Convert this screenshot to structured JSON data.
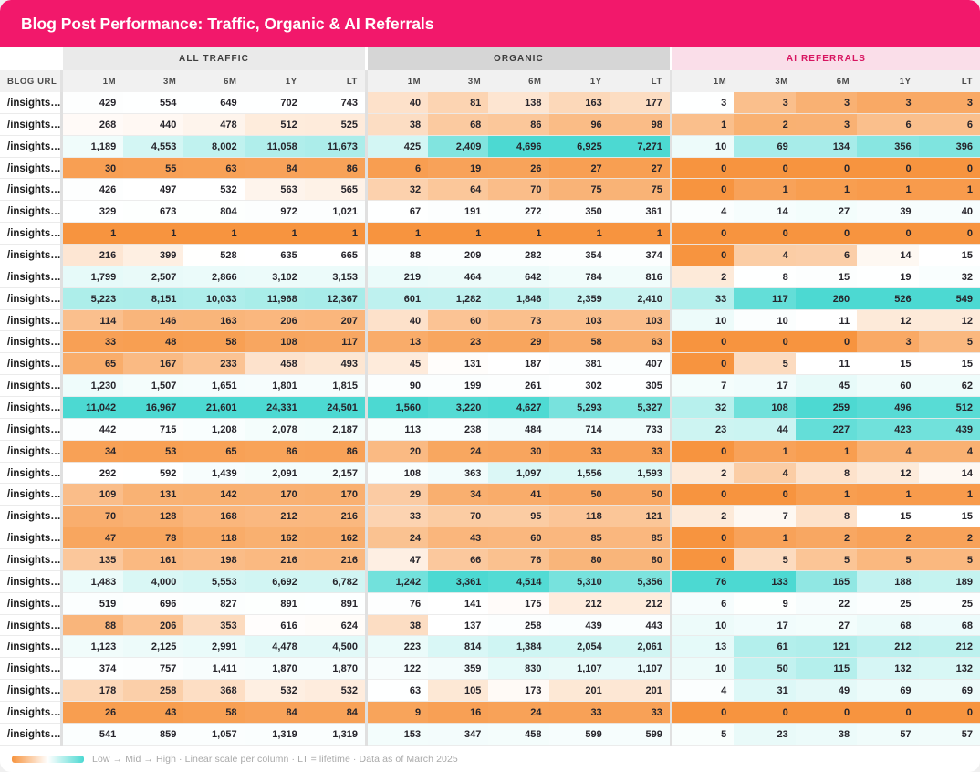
{
  "header": {
    "title": "Blog Post Performance: Traffic, Organic & AI Referrals"
  },
  "legend": {
    "text": "Low → Mid → High · Linear scale per column · LT = lifetime · Data as of March 2025"
  },
  "colors": {
    "header_pink": "#F2186B",
    "ai_group_bg": "#FADEE9",
    "ai_group_text": "#D81561",
    "group_bg_all_traffic": "#EAEAEA",
    "group_bg_organic": "#D6D6D6",
    "heat_low_orange": "#F7943F",
    "heat_mid_white": "#FFFFFF",
    "heat_high_teal": "#4CD9D2"
  },
  "chart_data": {
    "type": "heatmap",
    "title": "Blog Post Performance: Traffic, Organic & AI Referrals",
    "row_header_label": "BLOG URL",
    "row_label": "/insights…",
    "column_groups": [
      {
        "label": "ALL TRAFFIC"
      },
      {
        "label": "ORGANIC"
      },
      {
        "label": "AI REFERRALS"
      }
    ],
    "periods": [
      "1M",
      "3M",
      "6M",
      "1Y",
      "LT"
    ],
    "scale_note": "Low to Mid to High, linear scale per column, white at column median",
    "rows": [
      {
        "url": "/insights…",
        "all_traffic": [
          429,
          554,
          649,
          702,
          743
        ],
        "organic": [
          40,
          81,
          138,
          163,
          177
        ],
        "ai_referrals": [
          3,
          3,
          3,
          3,
          3
        ]
      },
      {
        "url": "/insights…",
        "all_traffic": [
          268,
          440,
          478,
          512,
          525
        ],
        "organic": [
          38,
          68,
          86,
          96,
          98
        ],
        "ai_referrals": [
          1,
          2,
          3,
          6,
          6
        ]
      },
      {
        "url": "/insights…",
        "all_traffic": [
          1189,
          4553,
          8002,
          11058,
          11673
        ],
        "organic": [
          425,
          2409,
          4696,
          6925,
          7271
        ],
        "ai_referrals": [
          10,
          69,
          134,
          356,
          396
        ]
      },
      {
        "url": "/insights…",
        "all_traffic": [
          30,
          55,
          63,
          84,
          86
        ],
        "organic": [
          6,
          19,
          26,
          27,
          27
        ],
        "ai_referrals": [
          0,
          0,
          0,
          0,
          0
        ]
      },
      {
        "url": "/insights…",
        "all_traffic": [
          426,
          497,
          532,
          563,
          565
        ],
        "organic": [
          32,
          64,
          70,
          75,
          75
        ],
        "ai_referrals": [
          0,
          1,
          1,
          1,
          1
        ]
      },
      {
        "url": "/insights…",
        "all_traffic": [
          329,
          673,
          804,
          972,
          1021
        ],
        "organic": [
          67,
          191,
          272,
          350,
          361
        ],
        "ai_referrals": [
          4,
          14,
          27,
          39,
          40
        ]
      },
      {
        "url": "/insights…",
        "all_traffic": [
          1,
          1,
          1,
          1,
          1
        ],
        "organic": [
          1,
          1,
          1,
          1,
          1
        ],
        "ai_referrals": [
          0,
          0,
          0,
          0,
          0
        ]
      },
      {
        "url": "/insights…",
        "all_traffic": [
          216,
          399,
          528,
          635,
          665
        ],
        "organic": [
          88,
          209,
          282,
          354,
          374
        ],
        "ai_referrals": [
          0,
          4,
          6,
          14,
          15
        ]
      },
      {
        "url": "/insights…",
        "all_traffic": [
          1799,
          2507,
          2866,
          3102,
          3153
        ],
        "organic": [
          219,
          464,
          642,
          784,
          816
        ],
        "ai_referrals": [
          2,
          8,
          15,
          19,
          32
        ]
      },
      {
        "url": "/insights…",
        "all_traffic": [
          5223,
          8151,
          10033,
          11968,
          12367
        ],
        "organic": [
          601,
          1282,
          1846,
          2359,
          2410
        ],
        "ai_referrals": [
          33,
          117,
          260,
          526,
          549
        ]
      },
      {
        "url": "/insights…",
        "all_traffic": [
          114,
          146,
          163,
          206,
          207
        ],
        "organic": [
          40,
          60,
          73,
          103,
          103
        ],
        "ai_referrals": [
          10,
          10,
          11,
          12,
          12
        ]
      },
      {
        "url": "/insights…",
        "all_traffic": [
          33,
          48,
          58,
          108,
          117
        ],
        "organic": [
          13,
          23,
          29,
          58,
          63
        ],
        "ai_referrals": [
          0,
          0,
          0,
          3,
          5
        ]
      },
      {
        "url": "/insights…",
        "all_traffic": [
          65,
          167,
          233,
          458,
          493
        ],
        "organic": [
          45,
          131,
          187,
          381,
          407
        ],
        "ai_referrals": [
          0,
          5,
          11,
          15,
          15
        ]
      },
      {
        "url": "/insights…",
        "all_traffic": [
          1230,
          1507,
          1651,
          1801,
          1815
        ],
        "organic": [
          90,
          199,
          261,
          302,
          305
        ],
        "ai_referrals": [
          7,
          17,
          45,
          60,
          62
        ]
      },
      {
        "url": "/insights…",
        "all_traffic": [
          11042,
          16967,
          21601,
          24331,
          24501
        ],
        "organic": [
          1560,
          3220,
          4627,
          5293,
          5327
        ],
        "ai_referrals": [
          32,
          108,
          259,
          496,
          512
        ]
      },
      {
        "url": "/insights…",
        "all_traffic": [
          442,
          715,
          1208,
          2078,
          2187
        ],
        "organic": [
          113,
          238,
          484,
          714,
          733
        ],
        "ai_referrals": [
          23,
          44,
          227,
          423,
          439
        ]
      },
      {
        "url": "/insights…",
        "all_traffic": [
          34,
          53,
          65,
          86,
          86
        ],
        "organic": [
          20,
          24,
          30,
          33,
          33
        ],
        "ai_referrals": [
          0,
          1,
          1,
          4,
          4
        ]
      },
      {
        "url": "/insights…",
        "all_traffic": [
          292,
          592,
          1439,
          2091,
          2157
        ],
        "organic": [
          108,
          363,
          1097,
          1556,
          1593
        ],
        "ai_referrals": [
          2,
          4,
          8,
          12,
          14
        ]
      },
      {
        "url": "/insights…",
        "all_traffic": [
          109,
          131,
          142,
          170,
          170
        ],
        "organic": [
          29,
          34,
          41,
          50,
          50
        ],
        "ai_referrals": [
          0,
          0,
          1,
          1,
          1
        ]
      },
      {
        "url": "/insights…",
        "all_traffic": [
          70,
          128,
          168,
          212,
          216
        ],
        "organic": [
          33,
          70,
          95,
          118,
          121
        ],
        "ai_referrals": [
          2,
          7,
          8,
          15,
          15
        ]
      },
      {
        "url": "/insights…",
        "all_traffic": [
          47,
          78,
          118,
          162,
          162
        ],
        "organic": [
          24,
          43,
          60,
          85,
          85
        ],
        "ai_referrals": [
          0,
          1,
          2,
          2,
          2
        ]
      },
      {
        "url": "/insights…",
        "all_traffic": [
          135,
          161,
          198,
          216,
          216
        ],
        "organic": [
          47,
          66,
          76,
          80,
          80
        ],
        "ai_referrals": [
          0,
          5,
          5,
          5,
          5
        ]
      },
      {
        "url": "/insights…",
        "all_traffic": [
          1483,
          4000,
          5553,
          6692,
          6782
        ],
        "organic": [
          1242,
          3361,
          4514,
          5310,
          5356
        ],
        "ai_referrals": [
          76,
          133,
          165,
          188,
          189
        ]
      },
      {
        "url": "/insights…",
        "all_traffic": [
          519,
          696,
          827,
          891,
          891
        ],
        "organic": [
          76,
          141,
          175,
          212,
          212
        ],
        "ai_referrals": [
          6,
          9,
          22,
          25,
          25
        ]
      },
      {
        "url": "/insights…",
        "all_traffic": [
          88,
          206,
          353,
          616,
          624
        ],
        "organic": [
          38,
          137,
          258,
          439,
          443
        ],
        "ai_referrals": [
          10,
          17,
          27,
          68,
          68
        ]
      },
      {
        "url": "/insights…",
        "all_traffic": [
          1123,
          2125,
          2991,
          4478,
          4500
        ],
        "organic": [
          223,
          814,
          1384,
          2054,
          2061
        ],
        "ai_referrals": [
          13,
          61,
          121,
          212,
          212
        ]
      },
      {
        "url": "/insights…",
        "all_traffic": [
          374,
          757,
          1411,
          1870,
          1870
        ],
        "organic": [
          122,
          359,
          830,
          1107,
          1107
        ],
        "ai_referrals": [
          10,
          50,
          115,
          132,
          132
        ]
      },
      {
        "url": "/insights…",
        "all_traffic": [
          178,
          258,
          368,
          532,
          532
        ],
        "organic": [
          63,
          105,
          173,
          201,
          201
        ],
        "ai_referrals": [
          4,
          31,
          49,
          69,
          69
        ]
      },
      {
        "url": "/insights…",
        "all_traffic": [
          26,
          43,
          58,
          84,
          84
        ],
        "organic": [
          9,
          16,
          24,
          33,
          33
        ],
        "ai_referrals": [
          0,
          0,
          0,
          0,
          0
        ]
      },
      {
        "url": "/insights…",
        "all_traffic": [
          541,
          859,
          1057,
          1319,
          1319
        ],
        "organic": [
          153,
          347,
          458,
          599,
          599
        ],
        "ai_referrals": [
          5,
          23,
          38,
          57,
          57
        ]
      }
    ]
  }
}
